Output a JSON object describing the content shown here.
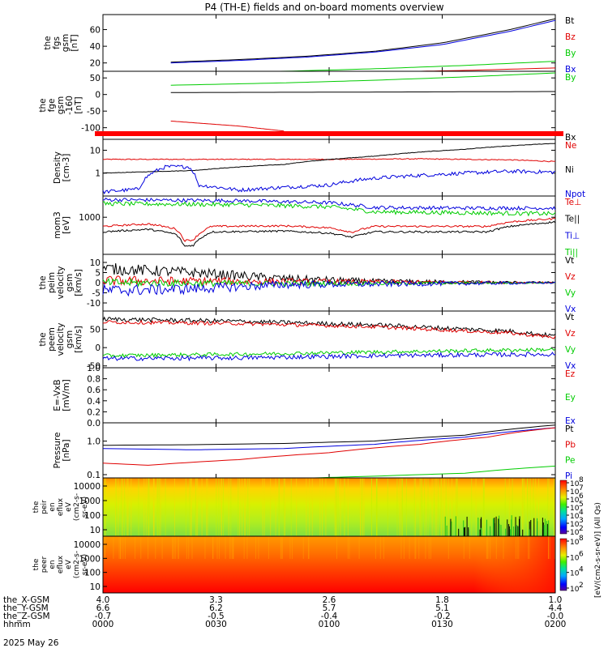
{
  "chart_data": {
    "type": "line",
    "title": "P4 (TH-E) fields and on-board moments overview",
    "date": "2025 May 26",
    "panels": [
      {
        "id": "fgs",
        "ylabel": [
          "the",
          "fgs",
          "gsm",
          "[nT]"
        ],
        "ylim": [
          10,
          78
        ],
        "yticks": [
          20,
          40,
          60
        ],
        "scale": "linear",
        "legend": [
          {
            "name": "Bt",
            "color": "#000000"
          },
          {
            "name": "Bz",
            "color": "#e00000"
          },
          {
            "name": "By",
            "color": "#00cc00"
          },
          {
            "name": "Bx",
            "color": "#0000dd"
          }
        ],
        "series": [
          {
            "name": "Bt",
            "color": "#000000",
            "x": [
              0.15,
              0.3,
              0.45,
              0.6,
              0.75,
              0.9,
              1.0
            ],
            "y": [
              21,
              24,
              28,
              34,
              44,
              60,
              73
            ]
          },
          {
            "name": "Bx",
            "color": "#0000dd",
            "x": [
              0.15,
              0.3,
              0.45,
              0.6,
              0.75,
              0.9,
              1.0
            ],
            "y": [
              20,
              23,
              27,
              33,
              42,
              58,
              71
            ]
          },
          {
            "name": "By",
            "color": "#00cc00",
            "x": [
              0.15,
              0.4,
              0.6,
              0.8,
              1.0
            ],
            "y": [
              8,
              10,
              13,
              17,
              22
            ]
          },
          {
            "name": "Bz",
            "color": "#e00000",
            "x": [
              0.15,
              0.4,
              0.6,
              0.8,
              1.0
            ],
            "y": [
              6,
              7,
              9,
              11,
              14
            ]
          }
        ]
      },
      {
        "id": "fge",
        "ylabel": [
          "the",
          "fge",
          "gsm",
          "-160",
          "[nT]"
        ],
        "ylim": [
          -135,
          70
        ],
        "yticks": [
          50,
          0,
          -50,
          -100
        ],
        "scale": "linear",
        "legend": [
          {
            "name": "By",
            "color": "#00cc00"
          },
          {
            "name": "Bx",
            "color": "#000000"
          }
        ],
        "series": [
          {
            "name": "By",
            "color": "#00cc00",
            "x": [
              0.15,
              0.4,
              0.6,
              0.8,
              1.0
            ],
            "y": [
              28,
              35,
              43,
              53,
              65
            ]
          },
          {
            "name": "Bx",
            "color": "#000000",
            "x": [
              0.15,
              0.5,
              1.0
            ],
            "y": [
              6,
              7,
              9
            ]
          },
          {
            "name": "Bz",
            "color": "#e00000",
            "x": [
              0.15,
              0.3,
              0.4
            ],
            "y": [
              -80,
              -95,
              -110
            ]
          }
        ]
      },
      {
        "id": "den",
        "ylabel": [
          "Density",
          "[cm-3]"
        ],
        "ylim": [
          0.1,
          30
        ],
        "yticks": [
          {
            "v": 1,
            "t": "1"
          },
          {
            "v": 10,
            "t": "10"
          }
        ],
        "scale": "log",
        "legend": [
          {
            "name": "Ne",
            "color": "#e00000"
          },
          {
            "name": "Ni",
            "color": "#000000"
          },
          {
            "name": "Npot",
            "color": "#0000dd"
          }
        ],
        "series": [
          {
            "name": "Ne",
            "color": "#e00000",
            "x": [
              0,
              0.5,
              0.7,
              0.9,
              1.0
            ],
            "y": [
              4,
              4,
              4.2,
              3.8,
              3.2
            ]
          },
          {
            "name": "Ni",
            "color": "#000000",
            "x": [
              0,
              0.2,
              0.4,
              0.6,
              0.8,
              1.0
            ],
            "y": [
              1.0,
              1.3,
              2.4,
              5.5,
              11,
              20
            ]
          },
          {
            "name": "Npot",
            "color": "#0000dd",
            "x": [
              0,
              0.08,
              0.14,
              0.19,
              0.21,
              0.3,
              0.5,
              0.6,
              0.7,
              0.8,
              0.9,
              1.0
            ],
            "y": [
              0.15,
              0.2,
              1.9,
              1.9,
              0.3,
              0.18,
              0.3,
              0.6,
              0.8,
              1.0,
              1.2,
              1.1
            ]
          }
        ]
      },
      {
        "id": "temp",
        "ylabel": [
          "mom3",
          "[eV]"
        ],
        "ylim": [
          60,
          5000
        ],
        "yticks": [
          {
            "v": 1000,
            "t": "1000"
          }
        ],
        "scale": "log",
        "legend": [
          {
            "name": "Te⊥",
            "color": "#e00000"
          },
          {
            "name": "Te||",
            "color": "#000000"
          },
          {
            "name": "Ti⊥",
            "color": "#0000dd"
          },
          {
            "name": "Ti||",
            "color": "#00cc00"
          }
        ],
        "series": [
          {
            "name": "Ti⊥",
            "color": "#0000dd",
            "x": [
              0,
              0.3,
              0.5,
              0.6,
              0.8,
              1.0
            ],
            "y": [
              3800,
              3500,
              3000,
              2100,
              2000,
              2000
            ]
          },
          {
            "name": "Ti||",
            "color": "#00cc00",
            "x": [
              0,
              0.3,
              0.5,
              0.6,
              0.8,
              1.0
            ],
            "y": [
              2800,
              2600,
              2200,
              1500,
              1400,
              1300
            ]
          },
          {
            "name": "Te⊥",
            "color": "#e00000",
            "x": [
              0,
              0.1,
              0.16,
              0.18,
              0.2,
              0.24,
              0.4,
              0.5,
              0.55,
              0.6,
              0.85,
              0.9,
              1.0
            ],
            "y": [
              500,
              600,
              420,
              170,
              180,
              500,
              520,
              450,
              320,
              500,
              500,
              700,
              900
            ]
          },
          {
            "name": "Te||",
            "color": "#000000",
            "x": [
              0,
              0.1,
              0.16,
              0.18,
              0.2,
              0.24,
              0.4,
              0.5,
              0.55,
              0.6,
              0.85,
              0.9,
              1.0
            ],
            "y": [
              330,
              400,
              280,
              110,
              120,
              330,
              350,
              300,
              220,
              330,
              330,
              500,
              700
            ]
          }
        ]
      },
      {
        "id": "peim",
        "ylabel": [
          "the",
          "peim",
          "velocity",
          "gsm",
          "[km/s]"
        ],
        "ylim": [
          -14,
          14
        ],
        "yticks": [
          10,
          5,
          0,
          -5,
          -10
        ],
        "scale": "linear",
        "legend": [
          {
            "name": "Vt",
            "color": "#000000"
          },
          {
            "name": "Vz",
            "color": "#e00000"
          },
          {
            "name": "Vy",
            "color": "#00cc00"
          },
          {
            "name": "Vx",
            "color": "#0000dd"
          }
        ],
        "series": [
          {
            "name": "Vt",
            "color": "#000000",
            "x": [
              0,
              0.2,
              0.4,
              0.6,
              1.0
            ],
            "y": [
              7,
              5,
              2,
              0.5,
              0
            ]
          },
          {
            "name": "Vz",
            "color": "#e00000",
            "x": [
              0,
              0.4,
              1.0
            ],
            "y": [
              1,
              0.5,
              0
            ]
          },
          {
            "name": "Vy",
            "color": "#00cc00",
            "x": [
              0,
              0.4,
              1.0
            ],
            "y": [
              0,
              -0.5,
              0
            ]
          },
          {
            "name": "Vx",
            "color": "#0000dd",
            "x": [
              0,
              0.2,
              0.4,
              1.0
            ],
            "y": [
              -4,
              -3,
              -1,
              0
            ]
          }
        ]
      },
      {
        "id": "peem",
        "ylabel": [
          "the",
          "peem",
          "velocity",
          "gsm",
          "[km/s]"
        ],
        "ylim": [
          -55,
          100
        ],
        "yticks": [
          50,
          0,
          -50
        ],
        "scale": "linear",
        "legend": [
          {
            "name": "Vt",
            "color": "#000000"
          },
          {
            "name": "Vz",
            "color": "#e00000"
          },
          {
            "name": "Vy",
            "color": "#00cc00"
          },
          {
            "name": "Vx",
            "color": "#0000dd"
          }
        ],
        "series": [
          {
            "name": "Vt",
            "color": "#000000",
            "x": [
              0,
              0.3,
              0.6,
              0.9,
              1.0
            ],
            "y": [
              78,
              72,
              62,
              45,
              32
            ]
          },
          {
            "name": "Vz",
            "color": "#e00000",
            "x": [
              0,
              0.3,
              0.6,
              0.9,
              1.0
            ],
            "y": [
              70,
              66,
              57,
              40,
              28
            ]
          },
          {
            "name": "Vy",
            "color": "#00cc00",
            "x": [
              0,
              0.3,
              0.6,
              1.0
            ],
            "y": [
              -22,
              -18,
              -12,
              -5
            ]
          },
          {
            "name": "Vx",
            "color": "#0000dd",
            "x": [
              0,
              0.3,
              0.6,
              1.0
            ],
            "y": [
              -30,
              -28,
              -22,
              -18
            ]
          }
        ]
      },
      {
        "id": "efield",
        "ylabel": [
          "E=-VxB",
          "[mV/m]"
        ],
        "ylim": [
          0,
          1
        ],
        "yticks": [
          {
            "v": 1,
            "t": "1.0"
          },
          {
            "v": 0.8,
            "t": "0.8"
          },
          {
            "v": 0.6,
            "t": "0.6"
          },
          {
            "v": 0.4,
            "t": "0.4"
          },
          {
            "v": 0.2,
            "t": "0.2"
          },
          {
            "v": 0,
            "t": "0.0"
          }
        ],
        "scale": "linear",
        "legend": [
          {
            "name": "Ez",
            "color": "#e00000"
          },
          {
            "name": "Ey",
            "color": "#00cc00"
          },
          {
            "name": "Ex",
            "color": "#0000dd"
          }
        ],
        "series": []
      },
      {
        "id": "press",
        "ylabel": [
          "Pressure",
          "[nPa]"
        ],
        "ylim": [
          0.08,
          3.5
        ],
        "yticks": [
          {
            "v": 1,
            "t": "1.0"
          },
          {
            "v": 0.1,
            "t": "0.1"
          }
        ],
        "scale": "log",
        "legend": [
          {
            "name": "Pt",
            "color": "#000000"
          },
          {
            "name": "Pb",
            "color": "#e00000"
          },
          {
            "name": "Pe",
            "color": "#00cc00"
          },
          {
            "name": "Pi",
            "color": "#0000dd"
          }
        ],
        "series": [
          {
            "name": "Pt",
            "color": "#000000",
            "x": [
              0,
              0.2,
              0.4,
              0.6,
              0.8,
              1.0
            ],
            "y": [
              0.75,
              0.78,
              0.85,
              1.0,
              1.5,
              3.0
            ]
          },
          {
            "name": "Pi",
            "color": "#0000dd",
            "x": [
              0,
              0.2,
              0.4,
              0.6,
              0.8,
              1.0
            ],
            "y": [
              0.6,
              0.55,
              0.6,
              0.8,
              1.3,
              2.5
            ]
          },
          {
            "name": "Pb",
            "color": "#e00000",
            "x": [
              0,
              0.1,
              0.3,
              0.5,
              0.7,
              0.85,
              1.0
            ],
            "y": [
              0.22,
              0.19,
              0.28,
              0.45,
              0.8,
              1.3,
              2.5
            ]
          },
          {
            "name": "Pe",
            "color": "#00cc00",
            "x": [
              0,
              0.4,
              0.6,
              0.8,
              1.0
            ],
            "y": [
              0.07,
              0.075,
              0.09,
              0.11,
              0.18
            ]
          }
        ]
      }
    ],
    "spectrograms": [
      {
        "id": "peir",
        "ylabel": [
          "the",
          "peir",
          "en",
          "eflux",
          "eV",
          "(cm2-s-",
          "sr-eV)"
        ],
        "yticks": [
          "10000",
          "1000",
          "100",
          "10"
        ],
        "colorbar": {
          "min_exp": 2,
          "max_exp": 8,
          "ticks": [
            "10",
            "10",
            "10",
            "10",
            "10",
            "10",
            "10"
          ],
          "tick_exps": [
            "8",
            "7",
            "6",
            "5",
            "4",
            "3",
            "2"
          ]
        }
      },
      {
        "id": "peer",
        "ylabel": [
          "the",
          "peer",
          "en",
          "eflux",
          "eV",
          "(cm2-s-",
          "sr-eV)"
        ],
        "yticks": [
          "10000",
          "1000",
          "100",
          "10"
        ],
        "colorbar": {
          "min_exp": 2,
          "max_exp": 8,
          "ticks": [
            "10",
            "10",
            "10",
            "10"
          ],
          "tick_exps": [
            "8",
            "6",
            "4",
            "2"
          ]
        }
      }
    ],
    "colorbar_label": "[eV/(cm^2-s-sr-eV)] (All Qs)",
    "colorbar_label_text": "[eV/(cm2-s-sr-eV)] (All Qs)",
    "x_axis": {
      "rows": [
        {
          "label": "the_X-GSM",
          "values": [
            "4.0",
            "3.3",
            "2.6",
            "1.8",
            "1.0"
          ]
        },
        {
          "label": "the_Y-GSM",
          "values": [
            "6.6",
            "6.2",
            "5.7",
            "5.1",
            "4.4"
          ]
        },
        {
          "label": "the_Z-GSM",
          "values": [
            "-0.7",
            "-0.5",
            "-0.4",
            "-0.2",
            "-0.0"
          ]
        },
        {
          "label": "hhmm",
          "values": [
            "0000",
            "0030",
            "0100",
            "0130",
            "0200"
          ]
        }
      ]
    }
  }
}
